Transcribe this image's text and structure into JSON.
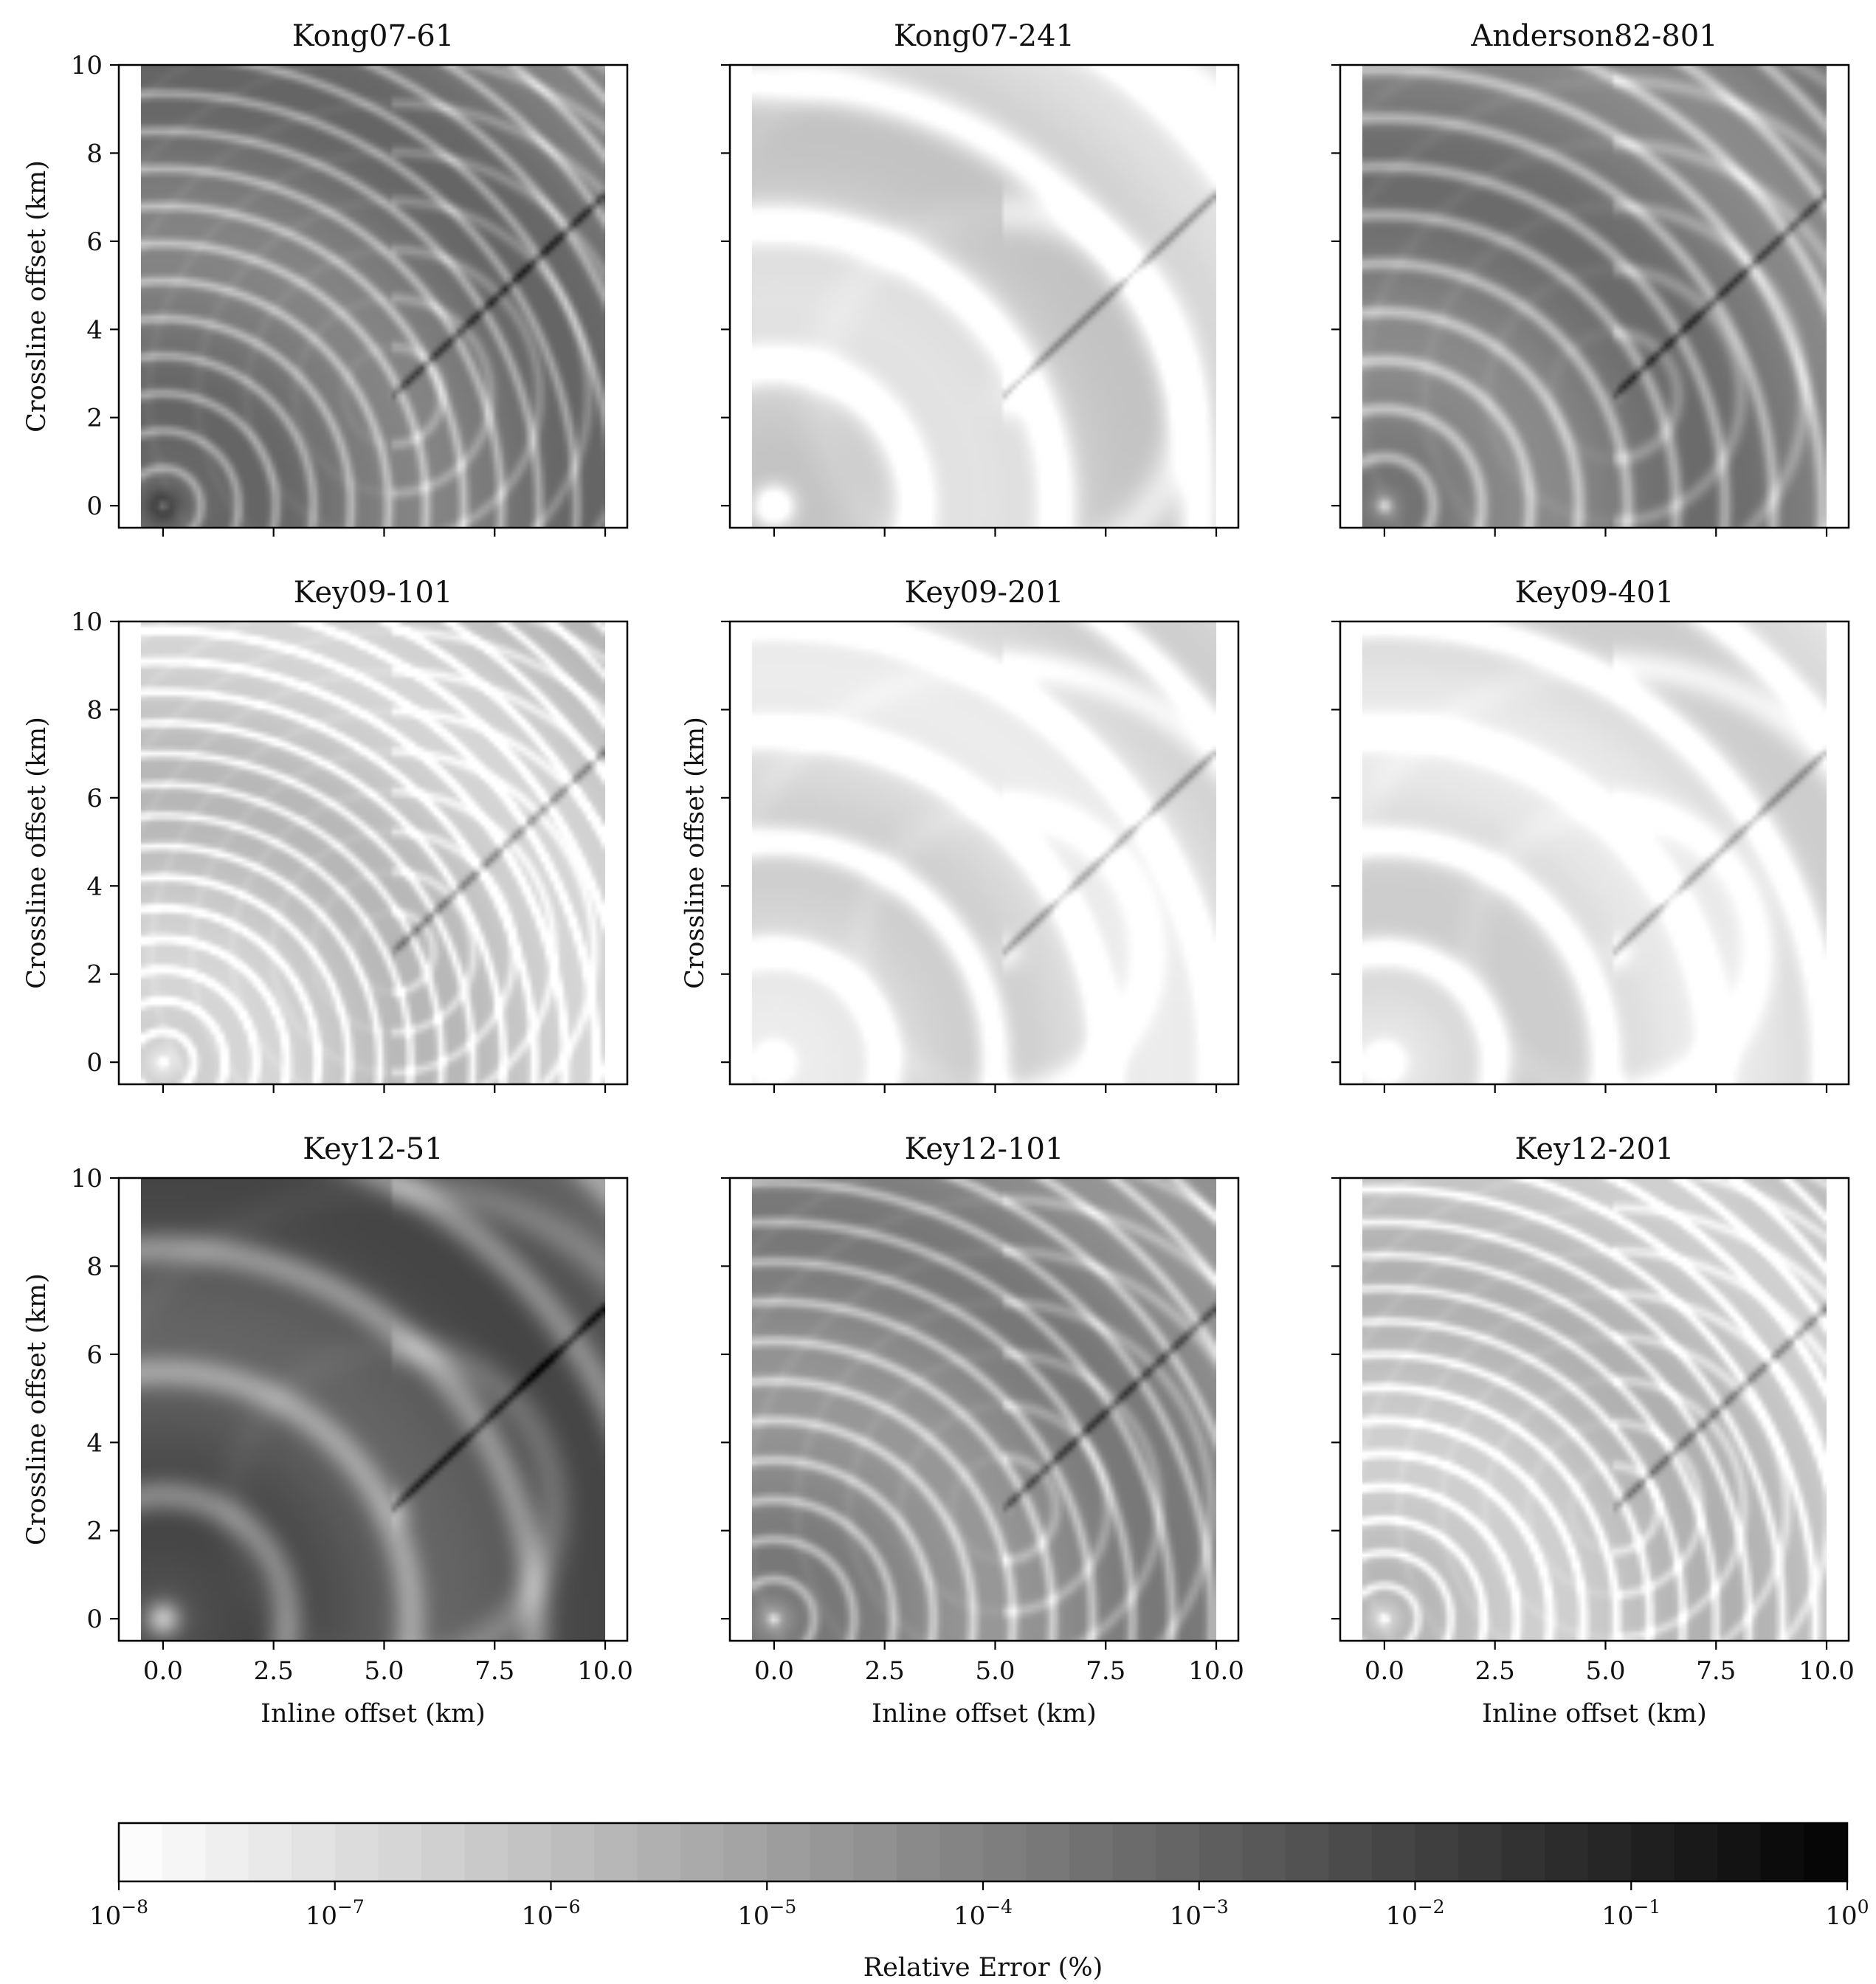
{
  "chart_data": {
    "type": "heatmap",
    "grid": "off",
    "xlim": [
      -1,
      10.5
    ],
    "ylim": [
      -0.5,
      10
    ],
    "xticks": [
      0.0,
      2.5,
      5.0,
      7.5,
      10.0
    ],
    "xtick_labels": [
      "0.0",
      "2.5",
      "5.0",
      "7.5",
      "10.0"
    ],
    "yticks": [
      0,
      2,
      4,
      6,
      8,
      10
    ],
    "ytick_labels": [
      "0",
      "2",
      "4",
      "6",
      "8",
      "10"
    ],
    "xlabel": "Inline offset (km)",
    "ylabel": "Crossline offset (km)",
    "receiver_extent": {
      "x": [
        -0.5,
        10.0
      ],
      "y": [
        -0.5,
        10.0
      ]
    },
    "panels": [
      {
        "title": "Kong07-61",
        "base_log_error": -3.6,
        "stripe_spacing_km": 0.85,
        "show_ylabel": true,
        "show_xlabel": false
      },
      {
        "title": "Kong07-241",
        "base_log_error": -6.6,
        "stripe_spacing_km": 3.2,
        "show_ylabel": false,
        "show_xlabel": false
      },
      {
        "title": "Anderson82-801",
        "base_log_error": -3.8,
        "stripe_spacing_km": 1.1,
        "show_ylabel": false,
        "show_xlabel": false
      },
      {
        "title": "Key09-101",
        "base_log_error": -6.2,
        "stripe_spacing_km": 0.7,
        "show_ylabel": true,
        "show_xlabel": false
      },
      {
        "title": "Key09-201",
        "base_log_error": -6.9,
        "stripe_spacing_km": 2.5,
        "show_ylabel": true,
        "show_xlabel": false
      },
      {
        "title": "Key09-401",
        "base_log_error": -6.9,
        "stripe_spacing_km": 2.5,
        "show_ylabel": false,
        "show_xlabel": false
      },
      {
        "title": "Key12-51",
        "base_log_error": -2.6,
        "stripe_spacing_km": 2.8,
        "show_ylabel": true,
        "show_xlabel": true
      },
      {
        "title": "Key12-101",
        "base_log_error": -4.2,
        "stripe_spacing_km": 0.9,
        "show_ylabel": false,
        "show_xlabel": true
      },
      {
        "title": "Key12-201",
        "base_log_error": -6.0,
        "stripe_spacing_km": 0.75,
        "show_ylabel": false,
        "show_xlabel": true
      }
    ],
    "colorbar": {
      "label": "Relative Error (%)",
      "scale": "log",
      "range": [
        1e-08,
        1
      ],
      "cmap": "Greys",
      "ticks": [
        {
          "base": "10",
          "exp": "−8"
        },
        {
          "base": "10",
          "exp": "−7"
        },
        {
          "base": "10",
          "exp": "−6"
        },
        {
          "base": "10",
          "exp": "−5"
        },
        {
          "base": "10",
          "exp": "−4"
        },
        {
          "base": "10",
          "exp": "−3"
        },
        {
          "base": "10",
          "exp": "−2"
        },
        {
          "base": "10",
          "exp": "−1"
        },
        {
          "base": "10",
          "exp": "0"
        }
      ],
      "levels": 40
    }
  }
}
